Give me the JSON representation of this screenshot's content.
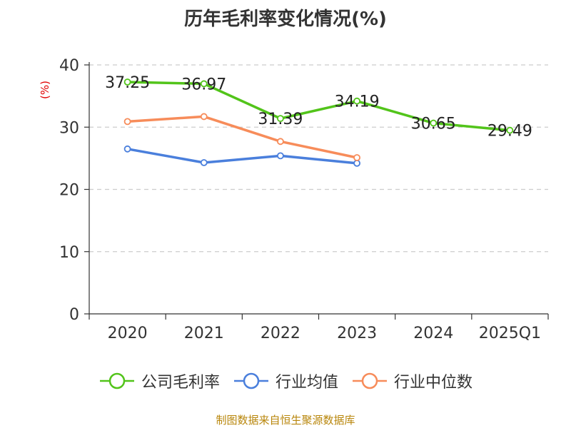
{
  "title": "历年毛利率变化情况(%)",
  "source": "制图数据来自恒生聚源数据库",
  "chart_data": {
    "type": "line",
    "title": "历年毛利率变化情况(%)",
    "ylabel": "(%)",
    "xlabel": "",
    "ylim": [
      0,
      40
    ],
    "yticks": [
      0,
      10,
      20,
      30,
      40
    ],
    "grid": true,
    "legend_position": "bottom",
    "categories": [
      "2020",
      "2021",
      "2022",
      "2023",
      "2024",
      "2025Q1"
    ],
    "series": [
      {
        "name": "公司毛利率",
        "color": "#52c41a",
        "show_labels": true,
        "values": [
          37.25,
          36.97,
          31.39,
          34.19,
          30.65,
          29.49
        ]
      },
      {
        "name": "行业均值",
        "color": "#4a7fdc",
        "show_labels": false,
        "values": [
          26.5,
          24.3,
          25.4,
          24.2,
          null,
          null
        ]
      },
      {
        "name": "行业中位数",
        "color": "#f78c5a",
        "show_labels": false,
        "values": [
          30.9,
          31.7,
          27.7,
          25.1,
          null,
          null
        ]
      }
    ]
  }
}
